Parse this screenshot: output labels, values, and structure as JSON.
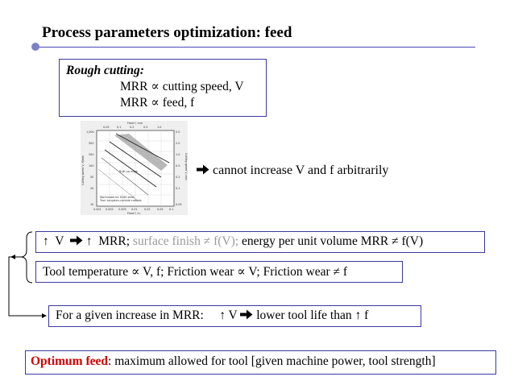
{
  "slide": {
    "title": "Process parameters optimization: feed"
  },
  "rough_box": {
    "heading": "Rough cutting:",
    "line1": "MRR ∝ cutting speed, V",
    "line2": "MRR ∝ feed, f"
  },
  "figure": {
    "top_axis_label": "Feed f, mm",
    "top_ticks": [
      "0.05",
      "0.1",
      "0.2",
      "0.5",
      "1.0"
    ],
    "bottom_ticks": [
      "0.001",
      "0.002",
      "0.005",
      "0.01",
      "0.02",
      "0.05",
      "0.1"
    ],
    "bottom_axis_label": "Feed f, in.",
    "left_ticks": [
      "1,000",
      "500",
      "200",
      "100",
      "50",
      "20",
      "10"
    ],
    "left_axis_label": "Cutting speed V, ft/min",
    "right_ticks": [
      "5.0",
      "2.0",
      "1.0",
      "0.5",
      "0.2",
      "0.1",
      "0.05"
    ],
    "right_axis_label": "Cutting speed V, m/s",
    "region_label": "Built-up edge",
    "annotation_line1": "Workmaterial: 8160 steel",
    "annotation_line2": "Tool: tungsten-carbide carbide"
  },
  "arrow_note": {
    "icon": "right-bold-arrow",
    "text": " cannot increase V and f arbitrarily"
  },
  "box1": {
    "prefix": "↑  V  ",
    "arrow_icon": "right-bold-arrow",
    "mid": " ↑  MRR; ",
    "grey": "surface finish ≠ f(V);",
    "end": " energy per unit volume MRR ≠ f(V)"
  },
  "box2": {
    "text": "Tool temperature ∝ V, f; Friction wear ∝ V; Friction wear ≠ f"
  },
  "box3": {
    "left": "For a given increase in MRR:     ↑ V ",
    "arrow_icon": "right-bold-arrow",
    "right": " lower tool life than ↑ f"
  },
  "box4": {
    "red": "Optimum feed",
    "rest": ": maximum allowed for tool [given machine power, tool strength]"
  },
  "colors": {
    "box_border": "#3a3aa0",
    "accent_red": "#d20000",
    "muted_grey": "#9a9a9a"
  }
}
